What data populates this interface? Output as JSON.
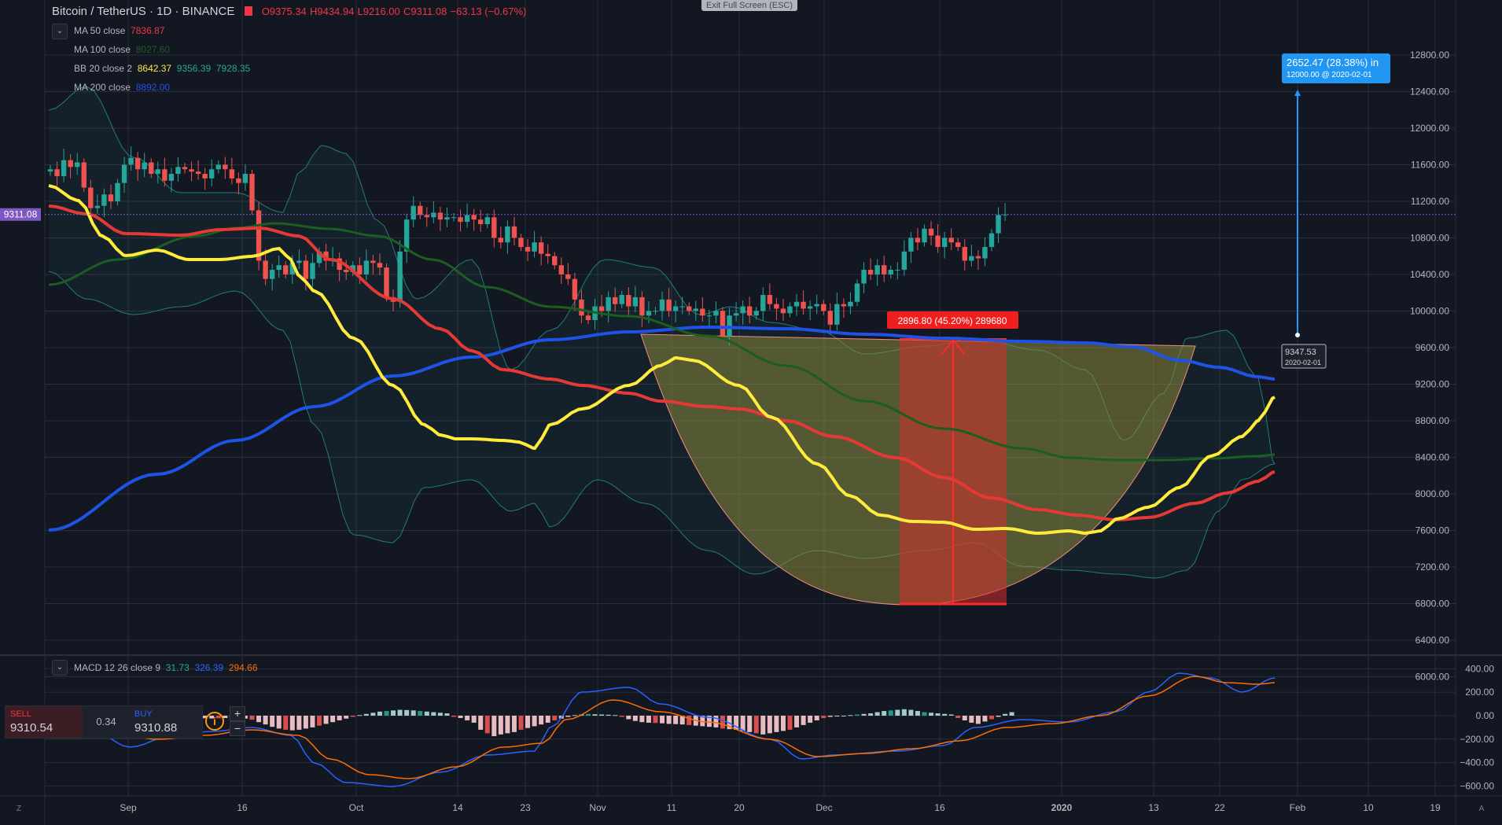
{
  "header": {
    "symbol": "Bitcoin / TetherUS",
    "interval": "1D",
    "exchange": "BINANCE",
    "ohlc": {
      "o": "O9375.34",
      "h": "H9434.94",
      "l": "L9216.00",
      "c": "C9311.08",
      "chg": "−63.13 (−0.67%)"
    }
  },
  "exit_full_screen": "Exit Full Screen (ESC)",
  "indicators": [
    {
      "name": "MA 50 close",
      "values": [
        "7836.87"
      ],
      "colors": [
        "#f23645"
      ]
    },
    {
      "name": "MA 100 close",
      "values": [
        "8027.60"
      ],
      "colors": [
        "#1b5e20"
      ]
    },
    {
      "name": "BB 20 close 2",
      "values": [
        "8642.37",
        "9356.39",
        "7928.35"
      ],
      "colors": [
        "#ffeb3b",
        "#26a69a",
        "#26a69a"
      ]
    },
    {
      "name": "MA 200 close",
      "values": [
        "8892.00"
      ],
      "colors": [
        "#1e53e5"
      ]
    }
  ],
  "macd": {
    "name": "MACD 12 26 close 9",
    "values": [
      "31.73",
      "326.39",
      "294.66"
    ],
    "colors": [
      "#26a69a",
      "#2962ff",
      "#ff6d00"
    ]
  },
  "price_axis": [
    "12800.00",
    "12400.00",
    "12000.00",
    "11600.00",
    "11200.00",
    "10800.00",
    "10400.00",
    "10000.00",
    "9600.00",
    "9200.00",
    "8800.00",
    "8400.00",
    "8000.00",
    "7600.00",
    "7200.00",
    "6800.00",
    "6400.00",
    "6000.00"
  ],
  "macd_axis": [
    "400.00",
    "200.00",
    "0.00",
    "−200.00",
    "−400.00",
    "−600.00"
  ],
  "time_axis": [
    "Sep",
    "16",
    "Oct",
    "14",
    "23",
    "Nov",
    "11",
    "20",
    "Dec",
    "16",
    "2020",
    "13",
    "22",
    "Feb",
    "10",
    "19"
  ],
  "last_price_label": "9311.08",
  "measure_red": "2896.80 (45.20%) 289680",
  "measure_blue": {
    "line1": "2652.47 (28.38%) in",
    "line2": "12000.00 @ 2020-02-01"
  },
  "marker_label": {
    "line1": "9347.53",
    "line2": "2020-02-01"
  },
  "trade": {
    "sell_label": "SELL",
    "sell_price": "9310.54",
    "spread": "0.34",
    "buy_label": "BUY",
    "buy_price": "9310.88",
    "info": "i",
    "plus": "+",
    "minus": "−"
  },
  "corner_left": "Z",
  "corner_right": "A",
  "colors": {
    "bg": "#131722",
    "grid": "#2a2e39",
    "up": "#26a69a",
    "down": "#ef5350",
    "ma50": "#e53935",
    "ma100": "#1b5e20",
    "ma200": "#1e53e5",
    "bb_basis": "#ffeb3b",
    "bb_band": "#26a69a",
    "accent": "#2962ff"
  }
}
